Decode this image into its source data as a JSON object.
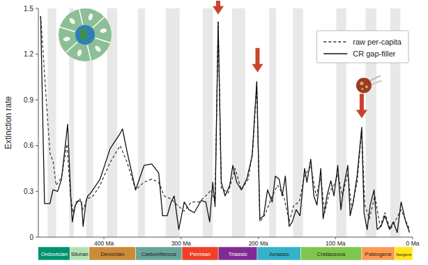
{
  "chart_data": {
    "type": "line",
    "ylabel": "Extinction rate",
    "xlim": [
      485,
      0
    ],
    "ylim": [
      0,
      1.5
    ],
    "xticks": [
      {
        "value": 400,
        "label": "400 Ma"
      },
      {
        "value": 300,
        "label": "300 Ma"
      },
      {
        "value": 200,
        "label": "200 Ma"
      },
      {
        "value": 100,
        "label": "100 Ma"
      },
      {
        "value": 0,
        "label": "0 Ma"
      }
    ],
    "yticks": [
      0,
      0.3,
      0.6,
      0.9,
      1.2,
      1.5
    ],
    "legend": "upper right",
    "series": [
      {
        "name": "raw per-capita",
        "color": "#333333",
        "line_style": "dashed",
        "x": [
          482,
          470,
          466,
          462,
          455,
          448,
          443,
          440,
          436,
          431,
          427,
          422,
          414,
          405,
          392,
          379,
          370,
          359,
          348,
          338,
          329,
          322,
          313,
          305,
          296,
          287,
          277,
          268,
          261,
          256,
          252,
          248,
          239,
          230,
          222,
          213,
          207,
          202,
          198,
          191,
          182,
          175,
          167,
          160,
          154,
          147,
          140,
          132,
          125,
          119,
          114,
          108,
          102,
          97,
          91,
          84,
          79,
          72,
          66,
          62,
          56,
          49,
          42,
          36,
          29,
          21,
          15,
          4
        ],
        "values": [
          1.45,
          0.55,
          0.5,
          0.34,
          0.39,
          0.61,
          0.26,
          0.16,
          0.23,
          0.25,
          0.18,
          0.25,
          0.27,
          0.34,
          0.49,
          0.6,
          0.49,
          0.31,
          0.36,
          0.38,
          0.36,
          0.27,
          0.25,
          0.21,
          0.17,
          0.23,
          0.23,
          0.27,
          0.31,
          0.23,
          1.41,
          0.32,
          0.29,
          0.45,
          0.31,
          0.38,
          0.58,
          1.01,
          0.1,
          0.15,
          0.27,
          0.34,
          0.27,
          0.1,
          0.21,
          0.23,
          0.4,
          0.47,
          0.27,
          0.39,
          0.16,
          0.29,
          0.34,
          0.41,
          0.27,
          0.42,
          0.18,
          0.36,
          0.7,
          0.21,
          0.12,
          0.27,
          0.07,
          0.16,
          0.05,
          0.12,
          0.18,
          0.05
        ]
      },
      {
        "name": "CR gap-filler",
        "color": "#111111",
        "line_style": "solid",
        "x": [
          482,
          477,
          470,
          466,
          460,
          455,
          447,
          443,
          441,
          437,
          433,
          429,
          427,
          423,
          421,
          417,
          405,
          392,
          379,
          376,
          370,
          359,
          348,
          338,
          329,
          324,
          318,
          313,
          309,
          303,
          296,
          290,
          283,
          274,
          268,
          263,
          259,
          256,
          252,
          248,
          243,
          237,
          233,
          228,
          222,
          215,
          208,
          202,
          198,
          193,
          188,
          182,
          178,
          173,
          169,
          165,
          160,
          156,
          151,
          146,
          140,
          137,
          132,
          128,
          124,
          119,
          116,
          111,
          106,
          102,
          97,
          93,
          89,
          84,
          81,
          77,
          72,
          66,
          63,
          59,
          55,
          50,
          46,
          41,
          36,
          30,
          25,
          20,
          15,
          9,
          4
        ],
        "values": [
          1.45,
          0.22,
          0.22,
          0.31,
          0.3,
          0.38,
          0.74,
          0.27,
          0.1,
          0.21,
          0.24,
          0.23,
          0.07,
          0.24,
          0.27,
          0.29,
          0.38,
          0.58,
          0.68,
          0.71,
          0.56,
          0.31,
          0.47,
          0.48,
          0.42,
          0.14,
          0.14,
          0.23,
          0.27,
          0.05,
          0.23,
          0.18,
          0.16,
          0.24,
          0.23,
          0.1,
          0.36,
          0.2,
          1.41,
          0.36,
          0.27,
          0.34,
          0.47,
          0.36,
          0.31,
          0.38,
          0.53,
          1.02,
          0.12,
          0.14,
          0.31,
          0.23,
          0.4,
          0.38,
          0.27,
          0.4,
          0.07,
          0.1,
          0.18,
          0.14,
          0.45,
          0.36,
          0.51,
          0.27,
          0.21,
          0.45,
          0.12,
          0.27,
          0.37,
          0.27,
          0.47,
          0.18,
          0.34,
          0.47,
          0.14,
          0.23,
          0.4,
          0.72,
          0.16,
          0.05,
          0.21,
          0.31,
          0.05,
          0.07,
          0.14,
          0.05,
          0.1,
          0.03,
          0.23,
          0.1,
          0.03
        ]
      }
    ],
    "periods": [
      {
        "name": "Ordovician",
        "start": 485.4,
        "end": 443.8,
        "color": "#009270"
      },
      {
        "name": "Silurian",
        "start": 443.8,
        "end": 419.2,
        "color": "#b3e1b6"
      },
      {
        "name": "Devonian",
        "start": 419.2,
        "end": 358.9,
        "color": "#cb8c37"
      },
      {
        "name": "Carboniferous",
        "start": 358.9,
        "end": 298.9,
        "color": "#67a599"
      },
      {
        "name": "Permian",
        "start": 298.9,
        "end": 251.9,
        "color": "#f04028"
      },
      {
        "name": "Triassic",
        "start": 251.9,
        "end": 201.4,
        "color": "#812b92"
      },
      {
        "name": "Jurassic",
        "start": 201.4,
        "end": 145,
        "color": "#34b2c9"
      },
      {
        "name": "Cretaceous",
        "start": 145,
        "end": 66,
        "color": "#7fc64e"
      },
      {
        "name": "Paleogene",
        "start": 66,
        "end": 23,
        "color": "#fd9a52"
      },
      {
        "name": "Neogene",
        "start": 23,
        "end": 0,
        "color": "#ffe619"
      }
    ],
    "stage_bands": [
      [
        473,
        462
      ],
      [
        445,
        439
      ],
      [
        423,
        414
      ],
      [
        396,
        383
      ],
      [
        356,
        347
      ],
      [
        320,
        302
      ],
      [
        272,
        259
      ],
      [
        234,
        217
      ],
      [
        186,
        177
      ],
      [
        155,
        142
      ],
      [
        99,
        86
      ],
      [
        61,
        47
      ],
      [
        29,
        16
      ]
    ],
    "arrows": [
      {
        "x": 252,
        "y": 1.46
      },
      {
        "x": 201,
        "y": 1.08
      },
      {
        "x": 66,
        "y": 0.78
      }
    ]
  }
}
